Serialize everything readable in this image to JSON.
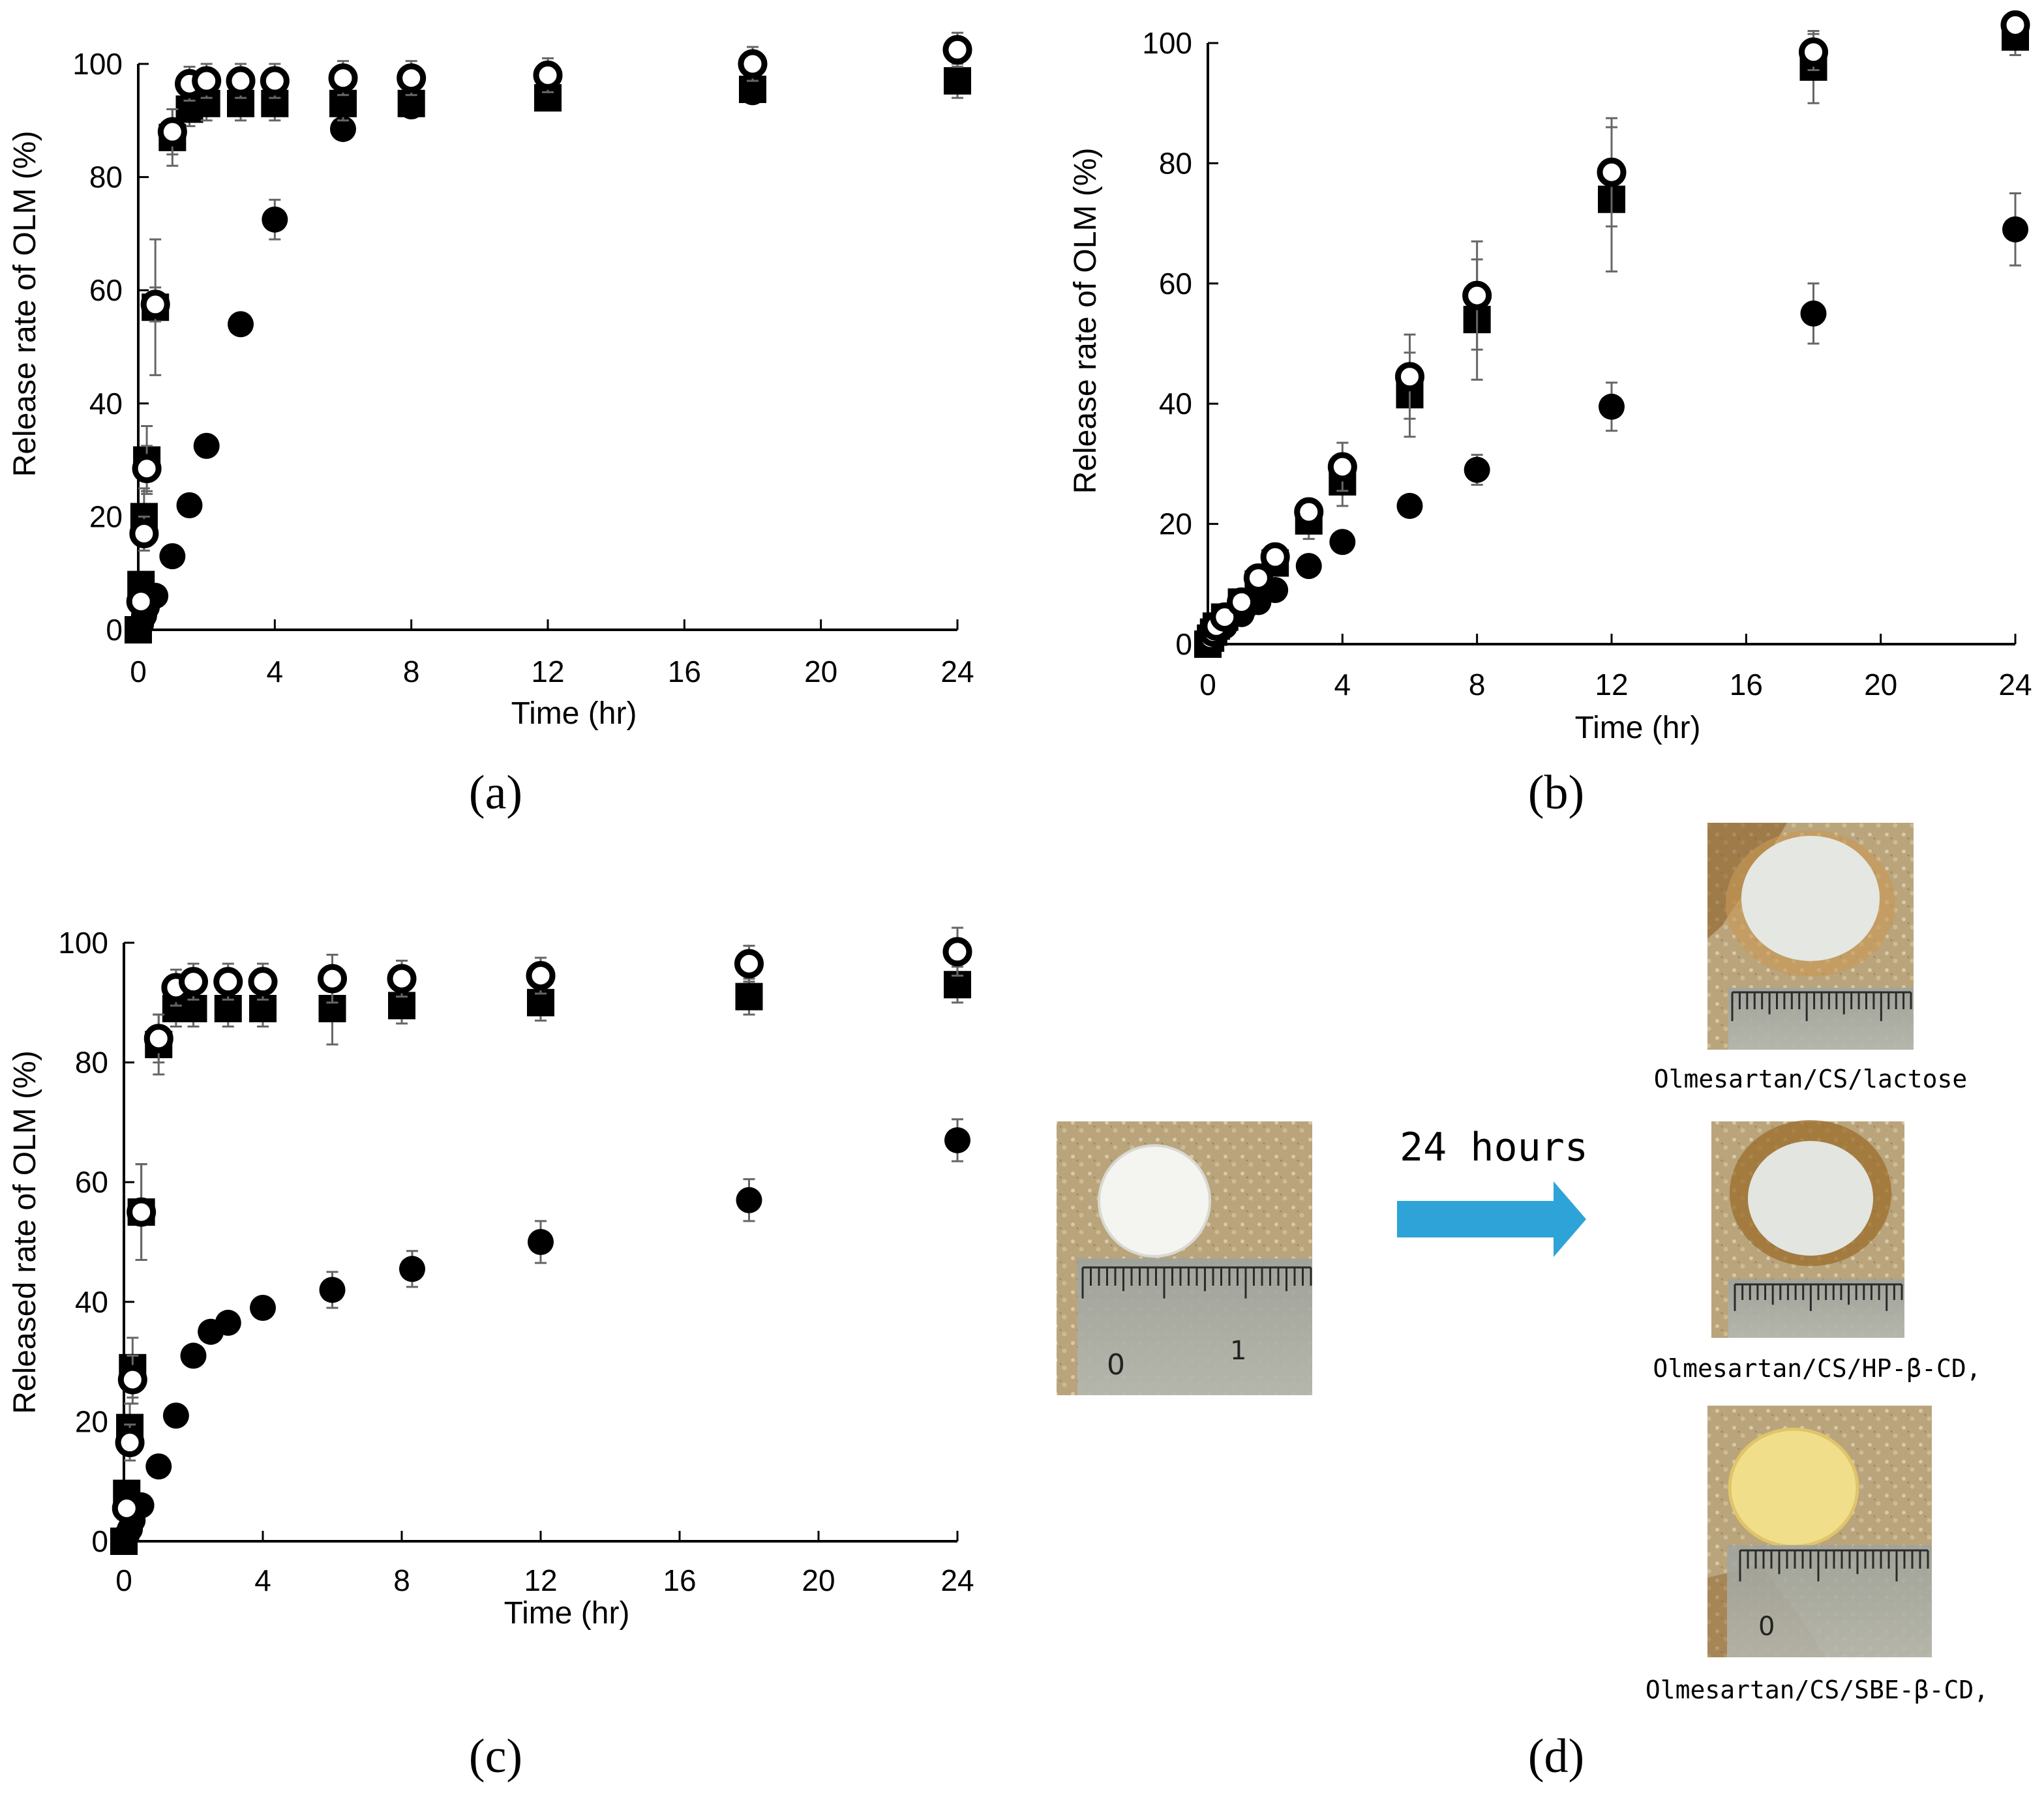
{
  "chart_data": [
    {
      "type": "scatter",
      "id": "a",
      "panel_label": "(a)",
      "xlabel": "Time (hr)",
      "ylabel": "Release rate of OLM (%)",
      "xlim": [
        0,
        24
      ],
      "ylim": [
        0,
        100
      ],
      "xticks": [
        "0",
        "4",
        "8",
        "12",
        "16",
        "20",
        "24"
      ],
      "yticks": [
        "0",
        "20",
        "40",
        "60",
        "80",
        "100"
      ],
      "series": [
        {
          "name": "filled-circle",
          "marker": "filled-circle",
          "x": [
            0.08,
            0.17,
            0.25,
            0.5,
            1,
            1.5,
            2,
            3,
            4,
            6,
            8,
            12,
            18,
            24
          ],
          "y": [
            1,
            2.5,
            4,
            6,
            13,
            22,
            32.5,
            54,
            72.5,
            88.5,
            92.5,
            94,
            95,
            97
          ],
          "err": [
            0,
            0,
            0,
            0,
            0,
            0,
            0,
            0,
            3.5,
            0,
            0,
            0,
            0,
            0
          ]
        },
        {
          "name": "filled-square",
          "marker": "filled-square",
          "x": [
            0,
            0.08,
            0.17,
            0.25,
            0.5,
            1,
            1.5,
            2,
            3,
            4,
            6,
            8,
            12,
            18,
            24
          ],
          "y": [
            0,
            8,
            20,
            30,
            57,
            87,
            92,
            93,
            93,
            93,
            93,
            93,
            94,
            95.5,
            97
          ],
          "err": [
            0,
            2,
            5,
            6,
            12,
            5,
            3,
            3,
            3,
            3,
            3,
            2,
            2,
            2,
            3
          ]
        },
        {
          "name": "open-circle",
          "marker": "open-circle",
          "x": [
            0.08,
            0.17,
            0.25,
            0.5,
            1,
            1.5,
            2,
            3,
            4,
            6,
            8,
            12,
            18,
            24
          ],
          "y": [
            5,
            17,
            28.5,
            57.5,
            88,
            96.5,
            97,
            97,
            97,
            97.5,
            97.5,
            98,
            100,
            102.5
          ],
          "err": [
            2,
            3,
            4,
            3,
            4,
            3,
            3,
            3,
            3,
            3,
            3,
            3,
            3,
            3
          ]
        }
      ]
    },
    {
      "type": "scatter",
      "id": "b",
      "panel_label": "(b)",
      "xlabel": "Time (hr)",
      "ylabel": "Release rate of OLM (%)",
      "xlim": [
        0,
        24
      ],
      "ylim": [
        0,
        100
      ],
      "xticks": [
        "0",
        "4",
        "8",
        "12",
        "16",
        "20",
        "24"
      ],
      "yticks": [
        "0",
        "20",
        "40",
        "60",
        "80",
        "100"
      ],
      "series": [
        {
          "name": "filled-circle",
          "marker": "filled-circle",
          "x": [
            0.08,
            0.17,
            0.25,
            0.5,
            1,
            1.5,
            2,
            3,
            4,
            6,
            8,
            12,
            18,
            24
          ],
          "y": [
            0.5,
            1,
            2,
            3,
            5,
            7,
            9,
            13,
            17,
            23,
            29,
            39.5,
            55,
            69
          ],
          "err": [
            0,
            0,
            0,
            0,
            0,
            0,
            0,
            0,
            0,
            0,
            2.5,
            4,
            5,
            6
          ]
        },
        {
          "name": "filled-square",
          "marker": "filled-square",
          "x": [
            0,
            0.08,
            0.17,
            0.25,
            0.5,
            1,
            1.5,
            2,
            3,
            4,
            6,
            8,
            12,
            18,
            24
          ],
          "y": [
            0,
            1,
            2,
            3,
            4.5,
            7,
            10,
            13.5,
            20.5,
            27,
            41.5,
            54,
            74,
            96,
            101
          ],
          "err": [
            0,
            0,
            0,
            0,
            0,
            0,
            0,
            0,
            3,
            4,
            7,
            10,
            12,
            6,
            3
          ]
        },
        {
          "name": "open-circle",
          "marker": "open-circle",
          "x": [
            0.08,
            0.17,
            0.25,
            0.5,
            1,
            1.5,
            2,
            3,
            4,
            6,
            8,
            12,
            18,
            24
          ],
          "y": [
            1,
            2,
            3,
            4.5,
            7,
            11,
            14.5,
            22,
            29.5,
            44.5,
            58,
            78.5,
            98.5,
            103
          ],
          "err": [
            0,
            0,
            0,
            0,
            0,
            0,
            0,
            0,
            4,
            7,
            9,
            9,
            3,
            2
          ]
        }
      ]
    },
    {
      "type": "scatter",
      "id": "c",
      "panel_label": "(c)",
      "xlabel": "Time (hr)",
      "ylabel": "Released rate of OLM (%)",
      "xlim": [
        0,
        24
      ],
      "ylim": [
        0,
        100
      ],
      "xticks": [
        "0",
        "4",
        "8",
        "12",
        "16",
        "20",
        "24"
      ],
      "yticks": [
        "0",
        "20",
        "40",
        "60",
        "80",
        "100"
      ],
      "series": [
        {
          "name": "filled-circle",
          "marker": "filled-circle",
          "x": [
            0.08,
            0.17,
            0.25,
            0.5,
            1,
            1.5,
            2,
            2.5,
            3,
            4,
            6,
            8.3,
            12,
            18,
            24
          ],
          "y": [
            1,
            2,
            3.5,
            6,
            12.5,
            21,
            31,
            35,
            36.5,
            39,
            42,
            45.5,
            50,
            57,
            67
          ],
          "err": [
            0,
            0,
            0,
            0,
            0,
            0,
            0,
            0,
            0,
            0,
            3,
            3,
            3.5,
            3.5,
            3.5
          ]
        },
        {
          "name": "filled-square",
          "marker": "filled-square",
          "x": [
            0,
            0.08,
            0.17,
            0.25,
            0.5,
            1,
            1.5,
            2,
            3,
            4,
            6,
            8,
            12,
            18,
            24
          ],
          "y": [
            0,
            8,
            19,
            29,
            55,
            83,
            89,
            89,
            89,
            89,
            89,
            89.5,
            90,
            91,
            93
          ],
          "err": [
            0,
            2,
            4,
            5,
            8,
            5,
            3,
            3,
            3,
            3,
            6,
            3,
            3,
            3,
            3
          ]
        },
        {
          "name": "open-circle",
          "marker": "open-circle",
          "x": [
            0.08,
            0.17,
            0.25,
            0.5,
            1,
            1.5,
            2,
            3,
            4,
            6,
            8,
            12,
            18,
            24
          ],
          "y": [
            5.5,
            16.5,
            27,
            55,
            84,
            92.5,
            93.5,
            93.5,
            93.5,
            94,
            94,
            94.5,
            96.5,
            98.5
          ],
          "err": [
            2,
            3,
            4,
            8,
            4,
            3,
            3,
            3,
            3,
            4,
            3,
            3,
            3,
            4
          ]
        }
      ]
    }
  ],
  "panel_d": {
    "panel_label": "(d)",
    "arrow_label": "24 hours",
    "captions": [
      "Olmesartan/CS/lactose",
      "Olmesartan/CS/HP-β-CD,",
      "Olmesartan/CS/SBE-β-CD,"
    ],
    "ruler_marks": [
      "0",
      "1"
    ],
    "colors": {
      "background_tan": "#b8a27a",
      "tablet_white": "#f4f4f0",
      "gel_white": "#e4e7e2",
      "gel_yellow": "#f0de8a",
      "stain_brown": "#8a5a20",
      "arrow_blue": "#2ea3d8"
    }
  }
}
